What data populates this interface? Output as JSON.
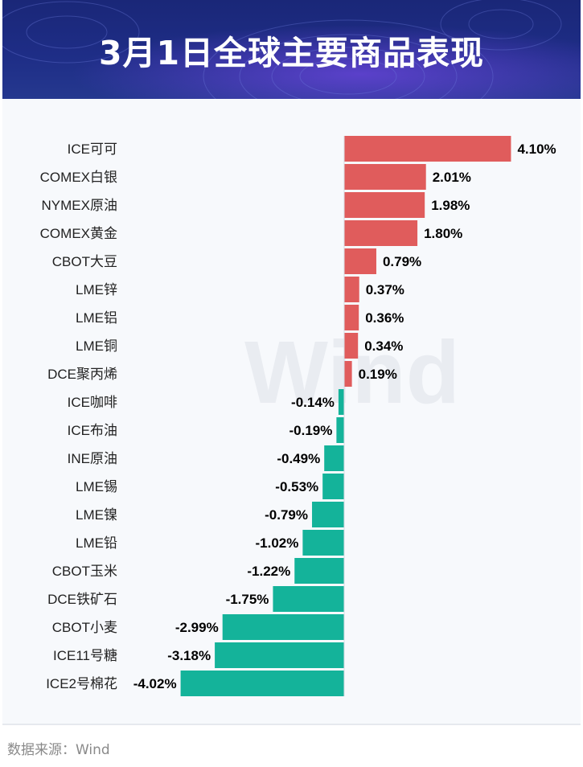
{
  "title": "3月1日全球主要商品表现",
  "source": "数据来源：Wind",
  "watermark": "Wind",
  "colors": {
    "positive": "#e05c5c",
    "negative": "#14b39a",
    "header": "#1e2d86"
  },
  "chart_data": {
    "type": "bar",
    "orientation": "horizontal",
    "title": "3月1日全球主要商品表现",
    "xlabel": "",
    "ylabel": "",
    "unit": "%",
    "categories": [
      "ICE可可",
      "COMEX白银",
      "NYMEX原油",
      "COMEX黄金",
      "CBOT大豆",
      "LME锌",
      "LME铝",
      "LME铜",
      "DCE聚丙烯",
      "ICE咖啡",
      "ICE布油",
      "INE原油",
      "LME锡",
      "LME镍",
      "LME铅",
      "CBOT玉米",
      "DCE铁矿石",
      "CBOT小麦",
      "ICE11号糖",
      "ICE2号棉花"
    ],
    "values": [
      4.1,
      2.01,
      1.98,
      1.8,
      0.79,
      0.37,
      0.36,
      0.34,
      0.19,
      -0.14,
      -0.19,
      -0.49,
      -0.53,
      -0.79,
      -1.02,
      -1.22,
      -1.75,
      -2.99,
      -3.18,
      -4.02
    ],
    "labels": [
      "4.10%",
      "2.01%",
      "1.98%",
      "1.80%",
      "0.79%",
      "0.37%",
      "0.36%",
      "0.34%",
      "0.19%",
      "-0.14%",
      "-0.19%",
      "-0.49%",
      "-0.53%",
      "-0.79%",
      "-1.02%",
      "-1.22%",
      "-1.75%",
      "-2.99%",
      "-3.18%",
      "-4.02%"
    ],
    "xlim": [
      -4.02,
      4.1
    ]
  }
}
